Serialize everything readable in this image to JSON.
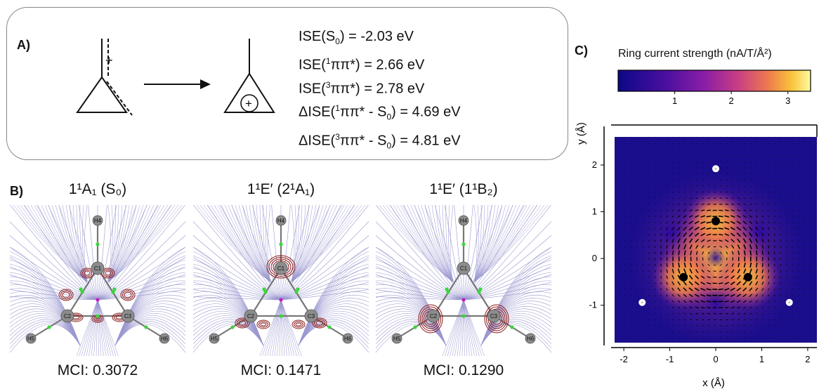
{
  "panel_a": {
    "label": "A)",
    "reactant_charge": "+",
    "product_charge": "+",
    "equations": [
      {
        "pre": "ISE(S",
        "sub": "0",
        "post": ") = -2.03 eV"
      },
      {
        "pre": "ISE(",
        "sup": "1",
        "post": "ππ*) = 2.66 eV"
      },
      {
        "pre": "ISE(",
        "sup": "3",
        "post": "ππ*) = 2.78 eV"
      },
      {
        "pre": "ΔISE(",
        "sup": "1",
        "post": "ππ* - S",
        "sub2": "0",
        "post2": ") = 4.69 eV"
      },
      {
        "pre": "ΔISE(",
        "sup": "3",
        "post": "ππ* - S",
        "sub2": "0",
        "post2": ") = 4.81 eV"
      }
    ]
  },
  "panel_b": {
    "label": "B)",
    "molecules": [
      {
        "title": "1¹A₁ (S₀)",
        "mci": "MCI: 0.3072"
      },
      {
        "title": "1¹E′ (2¹A₁)",
        "mci": "MCI: 0.1471"
      },
      {
        "title": "1¹E′ (1¹B₂)",
        "mci": "MCI: 0.1290"
      }
    ],
    "atom_labels": [
      "H4",
      "C1",
      "C2",
      "C3",
      "H5",
      "H6"
    ]
  },
  "panel_c": {
    "label": "C)",
    "colorbar_title": "Ring current strength (nA/T/Å²)",
    "colorbar_ticks": [
      "1",
      "2",
      "3"
    ],
    "colors": {
      "low": "#1a0f8a",
      "mid": "#8a22a8",
      "high": "#f7d340",
      "top": "#fcf8a0"
    }
  },
  "chart_data": {
    "type": "heatmap",
    "title": "",
    "xlabel": "x (Å)",
    "ylabel": "y (Å)",
    "xlim": [
      -2.2,
      2.2
    ],
    "ylim": [
      -1.8,
      2.6
    ],
    "xticks": [
      -2,
      -1,
      0,
      1,
      2
    ],
    "yticks": [
      -1,
      0,
      1,
      2
    ],
    "colorbar_range": [
      0,
      3.4
    ],
    "carbon_atoms": [
      {
        "x": 0.0,
        "y": 0.8
      },
      {
        "x": -0.7,
        "y": -0.4
      },
      {
        "x": 0.7,
        "y": -0.4
      }
    ],
    "hydrogen_atoms": [
      {
        "x": 0.0,
        "y": 1.92
      },
      {
        "x": -1.6,
        "y": -0.94
      },
      {
        "x": 1.6,
        "y": -0.94
      }
    ]
  }
}
